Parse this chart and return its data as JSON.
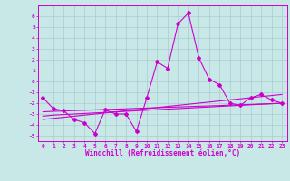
{
  "x": [
    0,
    1,
    2,
    3,
    4,
    5,
    6,
    7,
    8,
    9,
    10,
    11,
    12,
    13,
    14,
    15,
    16,
    17,
    18,
    19,
    20,
    21,
    22,
    23
  ],
  "main_line": [
    -1.5,
    -2.5,
    -2.7,
    -3.5,
    -3.8,
    -4.8,
    -2.6,
    -3.0,
    -3.0,
    -4.6,
    -1.5,
    1.8,
    1.2,
    5.3,
    6.3,
    2.2,
    0.2,
    -0.3,
    -2.0,
    -2.2,
    -1.5,
    -1.2,
    -1.7,
    -2.0
  ],
  "trend_lines": [
    [
      -3.5,
      -3.4,
      -3.3,
      -3.2,
      -3.1,
      -3.0,
      -2.9,
      -2.8,
      -2.7,
      -2.6,
      -2.5,
      -2.4,
      -2.3,
      -2.2,
      -2.1,
      -2.0,
      -1.9,
      -1.8,
      -1.7,
      -1.6,
      -1.5,
      -1.4,
      -1.3,
      -1.2
    ],
    [
      -3.2,
      -3.1,
      -3.05,
      -3.0,
      -2.95,
      -2.9,
      -2.85,
      -2.8,
      -2.75,
      -2.7,
      -2.65,
      -2.6,
      -2.55,
      -2.5,
      -2.45,
      -2.4,
      -2.35,
      -2.3,
      -2.25,
      -2.2,
      -2.15,
      -2.1,
      -2.05,
      -2.0
    ],
    [
      -2.8,
      -2.75,
      -2.72,
      -2.68,
      -2.65,
      -2.62,
      -2.58,
      -2.55,
      -2.52,
      -2.48,
      -2.45,
      -2.42,
      -2.38,
      -2.35,
      -2.32,
      -2.28,
      -2.25,
      -2.22,
      -2.18,
      -2.15,
      -2.12,
      -2.08,
      -2.05,
      -2.0
    ]
  ],
  "bg_color": "#c8e8e8",
  "line_color": "#cc00cc",
  "grid_color": "#aacccc",
  "xlabel": "Windchill (Refroidissement éolien,°C)",
  "xlim": [
    -0.5,
    23.5
  ],
  "ylim": [
    -5.5,
    7.0
  ],
  "yticks": [
    -5,
    -4,
    -3,
    -2,
    -1,
    0,
    1,
    2,
    3,
    4,
    5,
    6
  ],
  "xticks": [
    0,
    1,
    2,
    3,
    4,
    5,
    6,
    7,
    8,
    9,
    10,
    11,
    12,
    13,
    14,
    15,
    16,
    17,
    18,
    19,
    20,
    21,
    22,
    23
  ],
  "marker": "D",
  "markersize": 2.0,
  "linewidth": 0.8,
  "fontsize_ticks": 4.5,
  "fontsize_xlabel": 5.5
}
